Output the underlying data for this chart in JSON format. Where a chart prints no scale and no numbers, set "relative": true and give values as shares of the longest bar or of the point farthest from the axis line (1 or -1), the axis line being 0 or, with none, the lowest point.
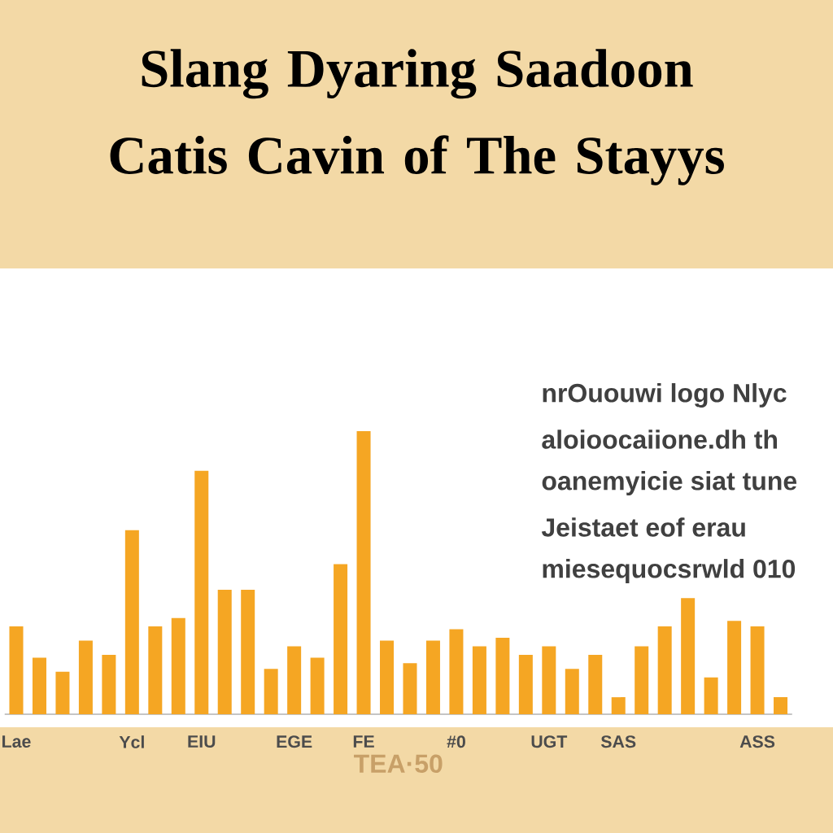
{
  "chart_data": {
    "type": "bar",
    "relative": true,
    "title": "Slang Dyaring Saadoon Catis Cavin of The Stayys",
    "xlabel": "TEA·50",
    "color": "#f5a623",
    "categories": [
      "Lae",
      null,
      null,
      null,
      null,
      "Ycl",
      null,
      null,
      "EIU",
      null,
      null,
      null,
      "EGE",
      null,
      null,
      "FE",
      null,
      null,
      null,
      "#0",
      null,
      null,
      null,
      "UGT",
      null,
      null,
      "SAS",
      null,
      null,
      null,
      null,
      null,
      "ASS",
      null
    ],
    "values": [
      0.31,
      0.2,
      0.15,
      0.26,
      0.21,
      0.65,
      0.31,
      0.34,
      0.86,
      0.44,
      0.44,
      0.16,
      0.24,
      0.2,
      0.53,
      1,
      0.26,
      0.18,
      0.26,
      0.3,
      0.24,
      0.27,
      0.21,
      0.24,
      0.16,
      0.21,
      0.06,
      0.24,
      0.31,
      0.41,
      0.13,
      0.33,
      0.31,
      0.06
    ],
    "annotations": [
      "nrOuouwi logo Nlyc",
      "aloioocaiione.dh th",
      "oanemyicie siat tune",
      "Jeistaet eof erau",
      "miesequocsrwld 010"
    ]
  }
}
